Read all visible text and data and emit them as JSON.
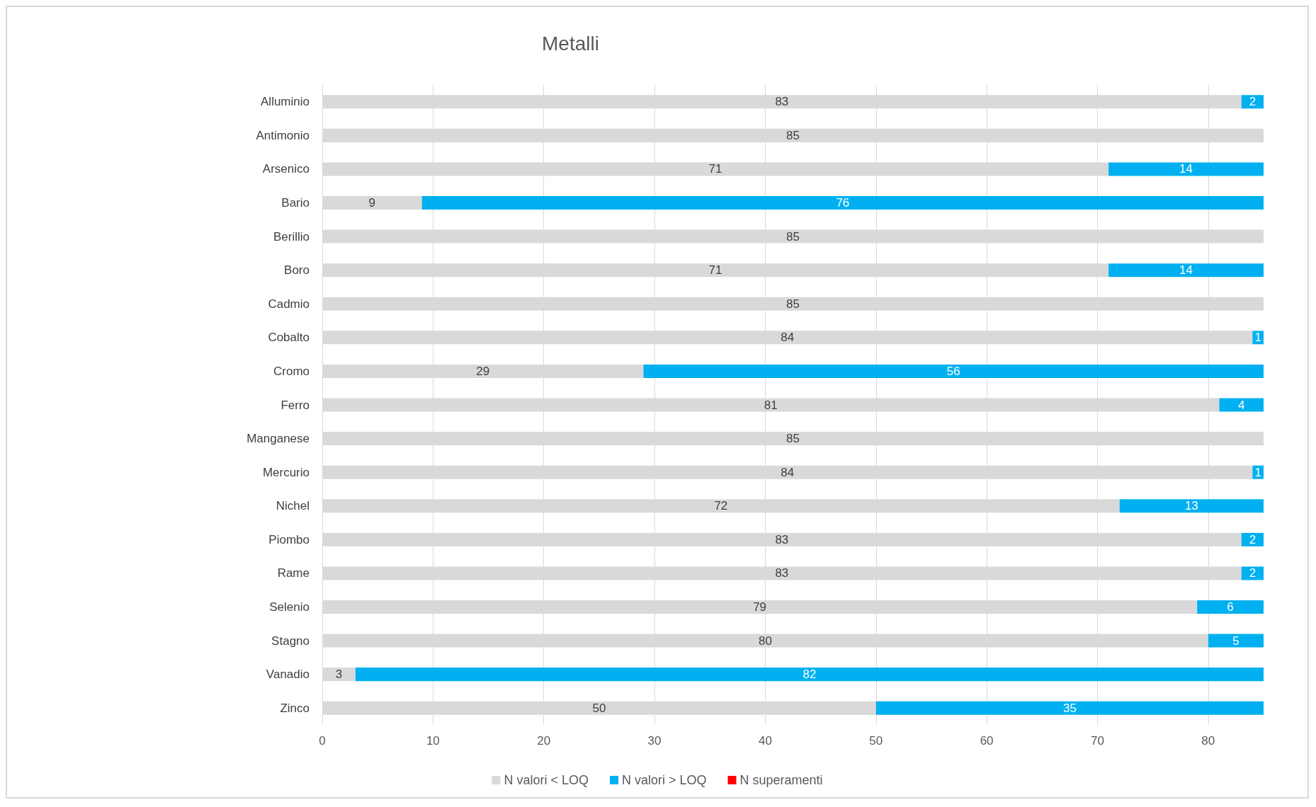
{
  "chart_data": {
    "type": "bar",
    "title": "Metalli",
    "orientation": "horizontal",
    "stacked": true,
    "categories": [
      "Alluminio",
      "Antimonio",
      "Arsenico",
      "Bario",
      "Berillio",
      "Boro",
      "Cadmio",
      "Cobalto",
      "Cromo",
      "Ferro",
      "Manganese",
      "Mercurio",
      "Nichel",
      "Piombo",
      "Rame",
      "Selenio",
      "Stagno",
      "Vanadio",
      "Zinco"
    ],
    "series": [
      {
        "name": "N valori < LOQ",
        "color": "#d9d9d9",
        "values": [
          83,
          85,
          71,
          9,
          85,
          71,
          85,
          84,
          29,
          81,
          85,
          84,
          72,
          83,
          83,
          79,
          80,
          3,
          50
        ],
        "value_labels": [
          "83",
          "85",
          "71",
          "9",
          "85",
          "71",
          "85",
          "84",
          "29",
          "81",
          "85",
          "84",
          "72",
          "83",
          "83",
          "79",
          "80",
          "3",
          "50"
        ]
      },
      {
        "name": "N valori > LOQ",
        "color": "#00b0f0",
        "values": [
          2,
          0,
          14,
          76,
          0,
          14,
          0,
          1,
          56,
          4,
          0,
          1,
          13,
          2,
          2,
          6,
          5,
          82,
          35
        ],
        "value_labels": [
          "2",
          null,
          "14",
          "76",
          null,
          "14",
          null,
          "1",
          "56",
          "4",
          null,
          "1",
          "13",
          "2",
          "2",
          "6",
          "5",
          "82",
          "35"
        ]
      },
      {
        "name": "N superamenti",
        "color": "#ff0000",
        "values": [
          0,
          0,
          0,
          0,
          0,
          0,
          0,
          0,
          0,
          0,
          0,
          0,
          0,
          0,
          0,
          0,
          0,
          0,
          0
        ]
      }
    ],
    "xlim": [
      0,
      85
    ],
    "xticks": [
      0,
      10,
      20,
      30,
      40,
      50,
      60,
      70,
      80
    ],
    "grid": "x",
    "legend": "bottom"
  }
}
